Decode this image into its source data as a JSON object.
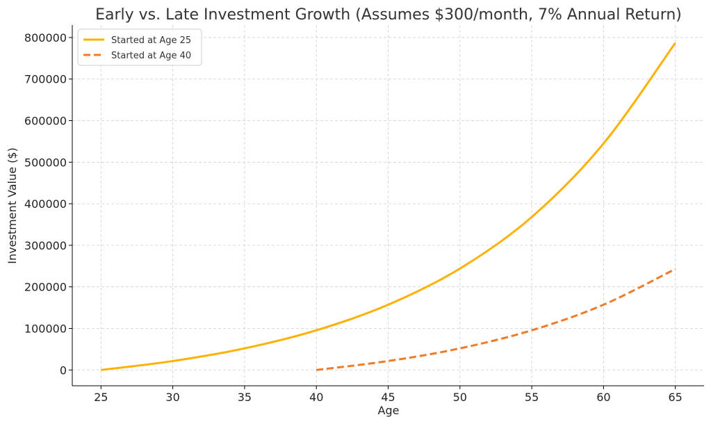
{
  "chart_data": {
    "type": "line",
    "title": "Early vs. Late Investment Growth (Assumes $300/month, 7% Annual Return)",
    "xlabel": "Age",
    "ylabel": "Investment Value ($)",
    "xlim": [
      23,
      67
    ],
    "ylim": [
      -38000,
      830000
    ],
    "x_ticks": [
      25,
      30,
      35,
      40,
      45,
      50,
      55,
      60,
      65
    ],
    "y_ticks": [
      0,
      100000,
      200000,
      300000,
      400000,
      500000,
      600000,
      700000,
      800000
    ],
    "grid": true,
    "legend_position": "top-left",
    "series": [
      {
        "name": "Started at Age 25",
        "color": "#FFB000",
        "style": "solid",
        "x": [
          25,
          30,
          35,
          40,
          45,
          50,
          55,
          60,
          65
        ],
        "y": [
          0,
          21500,
          52000,
          95500,
          157000,
          244000,
          368000,
          545000,
          787000
        ]
      },
      {
        "name": "Started at Age 40",
        "color": "#F07A28",
        "style": "dashed",
        "x": [
          40,
          45,
          50,
          55,
          60,
          65
        ],
        "y": [
          0,
          21500,
          52000,
          95500,
          157000,
          243000
        ]
      }
    ]
  }
}
